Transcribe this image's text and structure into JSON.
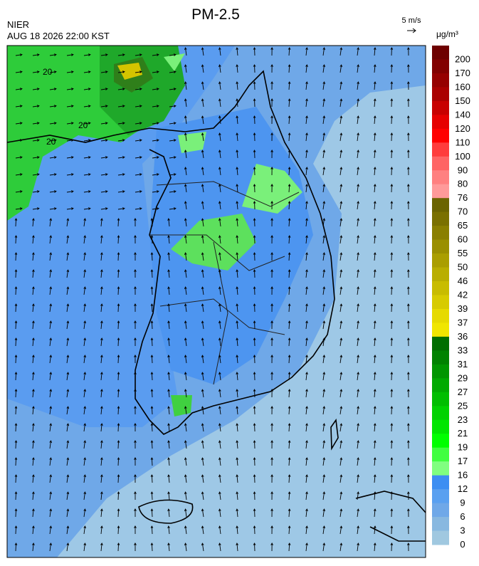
{
  "header": {
    "title": "PM-2.5",
    "agency": "NIER",
    "datetime": "AUG 18 2026 22:00 KST",
    "wind_scale": "5 m/s"
  },
  "legend": {
    "unit": "μg/m³",
    "levels": [
      200,
      170,
      160,
      150,
      140,
      120,
      110,
      100,
      90,
      80,
      76,
      70,
      65,
      60,
      55,
      50,
      46,
      42,
      39,
      37,
      36,
      33,
      31,
      29,
      27,
      25,
      23,
      21,
      19,
      17,
      16,
      12,
      9,
      6,
      3,
      0
    ],
    "colors": [
      "#6e0000",
      "#820000",
      "#960000",
      "#aa0000",
      "#c80000",
      "#e60000",
      "#ff0000",
      "#ff3c3c",
      "#ff6464",
      "#ff8080",
      "#ff9a9a",
      "#6b6400",
      "#7a7000",
      "#8a7f00",
      "#9a8f00",
      "#aa9e00",
      "#b9ae00",
      "#c8bc00",
      "#d7cb00",
      "#e6da00",
      "#f0e600",
      "#006e00",
      "#008200",
      "#009600",
      "#00aa00",
      "#00be00",
      "#00d200",
      "#00e600",
      "#00ff00",
      "#40ff40",
      "#80ff80",
      "#3d8ef2",
      "#5aa0f0",
      "#6fa8e8",
      "#88b8e0",
      "#a0c8e0"
    ]
  },
  "contours": [
    "20",
    "20",
    "20"
  ]
}
